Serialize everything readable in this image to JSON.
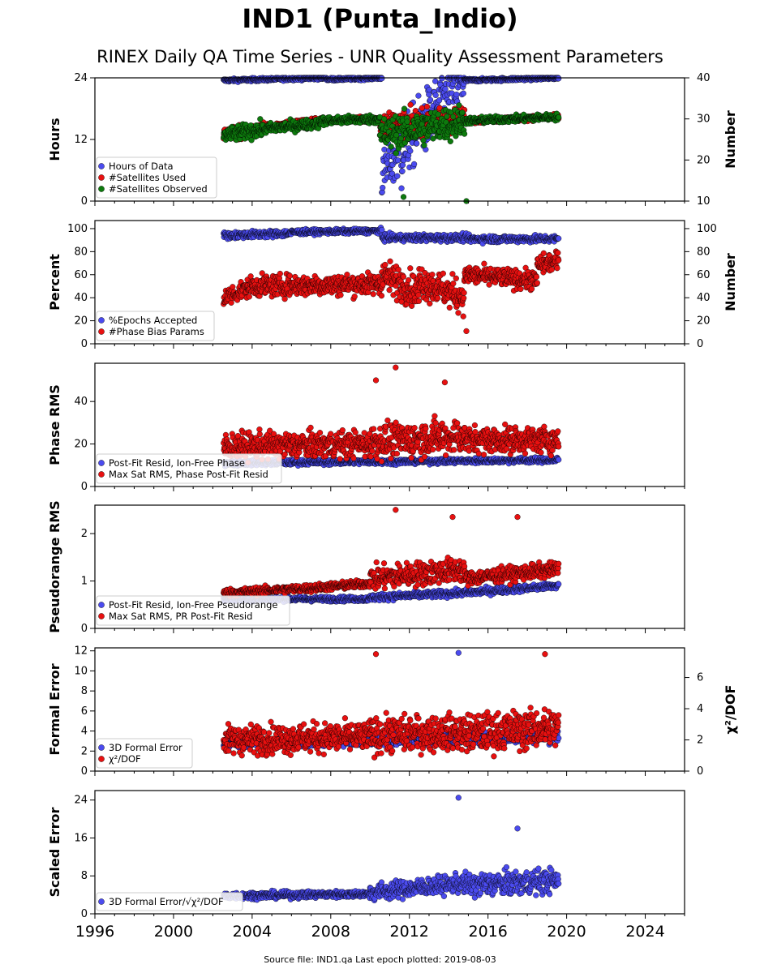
{
  "title": "IND1 (Punta_Indio)",
  "subtitle": "RINEX Daily QA Time Series - UNR Quality Assessment Parameters",
  "footer": "Source file: IND1.qa Last epoch plotted: 2019-08-03",
  "colors": {
    "blue": "#4b4bef",
    "red": "#e81010",
    "green": "#0d7a0d",
    "edge": "#000000"
  },
  "chart_data": {
    "type": "scatter",
    "x_range": [
      1996,
      2026
    ],
    "x_ticks": [
      1996,
      2000,
      2004,
      2008,
      2012,
      2016,
      2020,
      2024
    ],
    "x_data_range": [
      "2002-07",
      "2019-08-03"
    ],
    "panels": [
      {
        "id": "hours",
        "ylabel": "Hours",
        "ylim": [
          0,
          24
        ],
        "yticks": [
          0,
          12,
          24
        ],
        "ylabel_right": "Number",
        "ylim_right": [
          10,
          40
        ],
        "yticks_right": [
          10,
          20,
          30,
          40
        ],
        "series": [
          {
            "name": "Hours of Data",
            "color": "blue",
            "axis": "left",
            "segments": [
              {
                "x": [
                  2002.55,
                  2007.8
                ],
                "y": [
                  23.5,
                  24.0
                ],
                "scatter": 0.3
              },
              {
                "x": [
                  2007.8,
                  2010.6
                ],
                "y": [
                  23.7,
                  24.0
                ],
                "scatter": 0.3
              },
              {
                "x": [
                  2010.6,
                  2014.8
                ],
                "y": [
                  6,
                  24
                ],
                "scatter": 6
              },
              {
                "x": [
                  2014.8,
                  2019.59
                ],
                "y": [
                  23.5,
                  24.0
                ],
                "scatter": 0.3
              }
            ]
          },
          {
            "name": "#Satellites Used",
            "color": "red",
            "axis": "right",
            "segments": [
              {
                "x": [
                  2002.55,
                  2004.5
                ],
                "y": [
                  26.5,
                  27.5
                ],
                "scatter": 1.5
              },
              {
                "x": [
                  2004.5,
                  2007.5
                ],
                "y": [
                  28.0,
                  29.5
                ],
                "scatter": 1.0
              },
              {
                "x": [
                  2007.5,
                  2010.5
                ],
                "y": [
                  29.5,
                  30.0
                ],
                "scatter": 0.6
              },
              {
                "x": [
                  2010.5,
                  2014.8
                ],
                "y": [
                  28.5,
                  30.0
                ],
                "scatter": 3.0
              },
              {
                "x": [
                  2014.8,
                  2019.59
                ],
                "y": [
                  29.5,
                  30.5
                ],
                "scatter": 0.6
              }
            ]
          },
          {
            "name": "#Satellites Observed",
            "color": "green",
            "axis": "right",
            "segments": [
              {
                "x": [
                  2002.55,
                  2004.5
                ],
                "y": [
                  26.0,
                  27.5
                ],
                "scatter": 1.8
              },
              {
                "x": [
                  2004.5,
                  2007.5
                ],
                "y": [
                  27.5,
                  29.0
                ],
                "scatter": 1.2
              },
              {
                "x": [
                  2007.5,
                  2010.5
                ],
                "y": [
                  29.5,
                  30.0
                ],
                "scatter": 1.0
              },
              {
                "x": [
                  2010.5,
                  2014.8
                ],
                "y": [
                  26.0,
                  29.5
                ],
                "scatter": 4.0
              },
              {
                "x": [
                  2014.8,
                  2019.59
                ],
                "y": [
                  29.5,
                  30.5
                ],
                "scatter": 0.8
              }
            ]
          }
        ]
      },
      {
        "id": "percent",
        "ylabel": "Percent",
        "ylim": [
          0,
          107
        ],
        "yticks": [
          0,
          20,
          40,
          60,
          80,
          100
        ],
        "ylabel_right": "Number",
        "ylim_right": [
          0,
          107
        ],
        "yticks_right": [
          0,
          20,
          40,
          60,
          80,
          100
        ],
        "series": [
          {
            "name": "%Epochs Accepted",
            "color": "blue",
            "axis": "left",
            "segments": [
              {
                "x": [
                  2002.55,
                  2006.0
                ],
                "y": [
                  94,
                  96
                ],
                "scatter": 3
              },
              {
                "x": [
                  2006.0,
                  2010.6
                ],
                "y": [
                  97,
                  98
                ],
                "scatter": 2
              },
              {
                "x": [
                  2010.6,
                  2015.0
                ],
                "y": [
                  92,
                  92
                ],
                "scatter": 3
              },
              {
                "x": [
                  2015.0,
                  2019.59
                ],
                "y": [
                  91,
                  91
                ],
                "scatter": 3
              }
            ]
          },
          {
            "name": "#Phase Bias Params",
            "color": "red",
            "axis": "right",
            "segments": [
              {
                "x": [
                  2002.55,
                  2004.0
                ],
                "y": [
                  40,
                  50
                ],
                "scatter": 8
              },
              {
                "x": [
                  2004.0,
                  2010.6
                ],
                "y": [
                  50,
                  52
                ],
                "scatter": 9
              },
              {
                "x": [
                  2010.6,
                  2012.5
                ],
                "y": [
                  60,
                  45
                ],
                "scatter": 14
              },
              {
                "x": [
                  2012.5,
                  2014.8
                ],
                "y": [
                  55,
                  40
                ],
                "scatter": 14
              },
              {
                "x": [
                  2014.8,
                  2018.5
                ],
                "y": [
                  60,
                  55
                ],
                "scatter": 8
              },
              {
                "x": [
                  2018.5,
                  2019.59
                ],
                "y": [
                  68,
                  72
                ],
                "scatter": 8
              }
            ]
          }
        ]
      },
      {
        "id": "phase",
        "ylabel": "Phase RMS",
        "ylim": [
          0,
          58
        ],
        "yticks": [
          0,
          20,
          40
        ],
        "series": [
          {
            "name": "Post-Fit Resid, Ion-Free Phase",
            "color": "blue",
            "axis": "left",
            "segments": [
              {
                "x": [
                  2002.55,
                  2019.59
                ],
                "y": [
                  11,
                  12.5
                ],
                "scatter": 1.2
              }
            ]
          },
          {
            "name": "Max Sat RMS, Phase Post-Fit Resid",
            "color": "red",
            "axis": "left",
            "segments": [
              {
                "x": [
                  2002.55,
                  2010.0
                ],
                "y": [
                  19,
                  20
                ],
                "scatter": 6
              },
              {
                "x": [
                  2010.0,
                  2014.8
                ],
                "y": [
                  21,
                  24
                ],
                "scatter": 8
              },
              {
                "x": [
                  2014.8,
                  2019.59
                ],
                "y": [
                  22,
                  22
                ],
                "scatter": 6
              }
            ]
          }
        ]
      },
      {
        "id": "pseudorange",
        "ylabel": "Pseudorange RMS",
        "ylim": [
          0,
          2.6
        ],
        "yticks": [
          0,
          1,
          2
        ],
        "series": [
          {
            "name": "Post-Fit Resid, Ion-Free Pseudorange",
            "color": "blue",
            "axis": "left",
            "segments": [
              {
                "x": [
                  2002.55,
                  2010.0
                ],
                "y": [
                  0.62,
                  0.62
                ],
                "scatter": 0.05
              },
              {
                "x": [
                  2010.0,
                  2014.8
                ],
                "y": [
                  0.65,
                  0.75
                ],
                "scatter": 0.07
              },
              {
                "x": [
                  2014.8,
                  2019.59
                ],
                "y": [
                  0.75,
                  0.9
                ],
                "scatter": 0.07
              }
            ]
          },
          {
            "name": "Max Sat RMS, PR Post-Fit Resid",
            "color": "red",
            "axis": "left",
            "segments": [
              {
                "x": [
                  2002.55,
                  2007.0
                ],
                "y": [
                  0.75,
                  0.85
                ],
                "scatter": 0.08
              },
              {
                "x": [
                  2007.0,
                  2010.0
                ],
                "y": [
                  0.85,
                  0.95
                ],
                "scatter": 0.08
              },
              {
                "x": [
                  2010.0,
                  2014.8
                ],
                "y": [
                  1.05,
                  1.25
                ],
                "scatter": 0.25
              },
              {
                "x": [
                  2014.8,
                  2019.59
                ],
                "y": [
                  1.05,
                  1.25
                ],
                "scatter": 0.15
              }
            ]
          }
        ]
      },
      {
        "id": "formal",
        "ylabel": "Formal Error",
        "ylim": [
          0,
          12.3
        ],
        "yticks": [
          0,
          2,
          4,
          6,
          8,
          10,
          12
        ],
        "ylabel_right": "χ²/DOF",
        "ylim_right": [
          0,
          7.9
        ],
        "yticks_right": [
          0,
          2,
          4,
          6
        ],
        "series": [
          {
            "name": "3D Formal Error",
            "color": "blue",
            "axis": "left",
            "segments": [
              {
                "x": [
                  2002.55,
                  2010.0
                ],
                "y": [
                  2.8,
                  3.0
                ],
                "scatter": 0.4
              },
              {
                "x": [
                  2010.0,
                  2019.59
                ],
                "y": [
                  3.0,
                  3.5
                ],
                "scatter": 0.6
              }
            ]
          },
          {
            "name": "χ²/DOF",
            "color": "red",
            "axis": "right",
            "segments": [
              {
                "x": [
                  2002.55,
                  2010.0
                ],
                "y": [
                  2.0,
                  2.2
                ],
                "scatter": 0.9
              },
              {
                "x": [
                  2010.0,
                  2014.8
                ],
                "y": [
                  2.3,
                  2.5
                ],
                "scatter": 1.1
              },
              {
                "x": [
                  2014.8,
                  2019.59
                ],
                "y": [
                  2.4,
                  2.8
                ],
                "scatter": 1.2
              }
            ]
          }
        ]
      },
      {
        "id": "scaled",
        "ylabel": "Scaled Error",
        "ylim": [
          0,
          26
        ],
        "yticks": [
          0,
          8,
          16,
          24
        ],
        "series": [
          {
            "name": "3D Formal Error/√χ²/DOF",
            "color": "blue",
            "axis": "left",
            "segments": [
              {
                "x": [
                  2002.55,
                  2010.0
                ],
                "y": [
                  3.8,
                  4.2
                ],
                "scatter": 0.7
              },
              {
                "x": [
                  2010.0,
                  2014.8
                ],
                "y": [
                  4.5,
                  6.5
                ],
                "scatter": 1.8
              },
              {
                "x": [
                  2014.8,
                  2019.59
                ],
                "y": [
                  6.0,
                  7.0
                ],
                "scatter": 2.5
              }
            ]
          }
        ]
      }
    ],
    "notable_points": [
      {
        "panel": "hours",
        "series": "Hours of Data",
        "x": 2011.6,
        "y": 2.5
      },
      {
        "panel": "hours",
        "series": "#Satellites Observed",
        "x": 2011.7,
        "y": 11
      },
      {
        "panel": "hours",
        "series": "#Satellites Observed",
        "x": 2014.9,
        "y": 10
      },
      {
        "panel": "percent",
        "series": "#Phase Bias Params",
        "x": 2014.9,
        "y": 11
      },
      {
        "panel": "phase",
        "series": "Max Sat RMS, Phase Post-Fit Resid",
        "x": 2011.3,
        "y": 56
      },
      {
        "panel": "phase",
        "series": "Max Sat RMS, Phase Post-Fit Resid",
        "x": 2010.3,
        "y": 50
      },
      {
        "panel": "phase",
        "series": "Max Sat RMS, Phase Post-Fit Resid",
        "x": 2013.8,
        "y": 49
      },
      {
        "panel": "pseudorange",
        "series": "Max Sat RMS, PR Post-Fit Resid",
        "x": 2011.3,
        "y": 2.5
      },
      {
        "panel": "pseudorange",
        "series": "Max Sat RMS, PR Post-Fit Resid",
        "x": 2014.2,
        "y": 2.35
      },
      {
        "panel": "pseudorange",
        "series": "Max Sat RMS, PR Post-Fit Resid",
        "x": 2017.5,
        "y": 2.35
      },
      {
        "panel": "formal",
        "series": "χ²/DOF",
        "x": 2010.3,
        "y": 7.5
      },
      {
        "panel": "formal",
        "series": "3D Formal Error",
        "x": 2014.5,
        "y": 11.8
      },
      {
        "panel": "formal",
        "series": "χ²/DOF",
        "x": 2018.9,
        "y": 7.5
      },
      {
        "panel": "scaled",
        "series": "3D Formal Error/√χ²/DOF",
        "x": 2014.5,
        "y": 24.5
      },
      {
        "panel": "scaled",
        "series": "3D Formal Error/√χ²/DOF",
        "x": 2017.5,
        "y": 18
      }
    ]
  }
}
